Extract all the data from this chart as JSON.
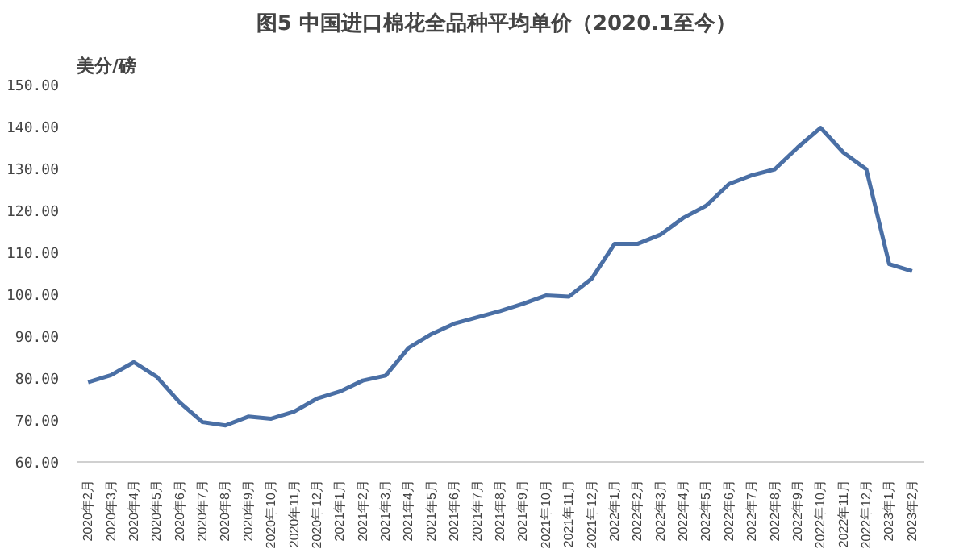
{
  "chart_data": {
    "type": "line",
    "title": "图5  中国进口棉花全品种平均单价（2020.1至今）",
    "ylabel": "美分/磅",
    "categories": [
      "2020年2月",
      "2020年3月",
      "2020年4月",
      "2020年5月",
      "2020年6月",
      "2020年7月",
      "2020年8月",
      "2020年9月",
      "2020年10月",
      "2020年11月",
      "2020年12月",
      "2021年1月",
      "2021年2月",
      "2021年3月",
      "2021年4月",
      "2021年5月",
      "2021年6月",
      "2021年7月",
      "2021年8月",
      "2021年9月",
      "2021年10月",
      "2021年11月",
      "2021年12月",
      "2022年1月",
      "2022年2月",
      "2022年3月",
      "2022年4月",
      "2022年5月",
      "2022年6月",
      "2022年7月",
      "2022年8月",
      "2022年9月",
      "2022年10月",
      "2022年11月",
      "2022年12月",
      "2023年1月",
      "2023年2月"
    ],
    "series": [
      {
        "color": "#4a6fa5",
        "values": [
          79,
          80.7,
          83.8,
          80.3,
          74.2,
          69.5,
          68.7,
          70.8,
          70.3,
          72,
          75.1,
          76.8,
          79.4,
          80.6,
          87.2,
          90.5,
          93,
          94.5,
          96,
          97.7,
          99.7,
          99.4,
          103.7,
          112,
          112,
          114.2,
          118.2,
          121.1,
          126.3,
          128.4,
          129.8,
          135,
          139.7,
          133.8,
          129.8,
          107.2,
          105.5
        ]
      }
    ],
    "ylim": [
      60,
      150
    ],
    "yticks": [
      {
        "value": 60,
        "label": "60.00"
      },
      {
        "value": 70,
        "label": "70.00"
      },
      {
        "value": 80,
        "label": "80.00"
      },
      {
        "value": 90,
        "label": "90.00"
      },
      {
        "value": 100,
        "label": "100.00"
      },
      {
        "value": 110,
        "label": "110.00"
      },
      {
        "value": 120,
        "label": "120.00"
      },
      {
        "value": 130,
        "label": "130.00"
      },
      {
        "value": 140,
        "label": "140.00"
      },
      {
        "value": 150,
        "label": "150.00"
      }
    ],
    "grid": false,
    "marker": "none",
    "line_style": "solid"
  }
}
